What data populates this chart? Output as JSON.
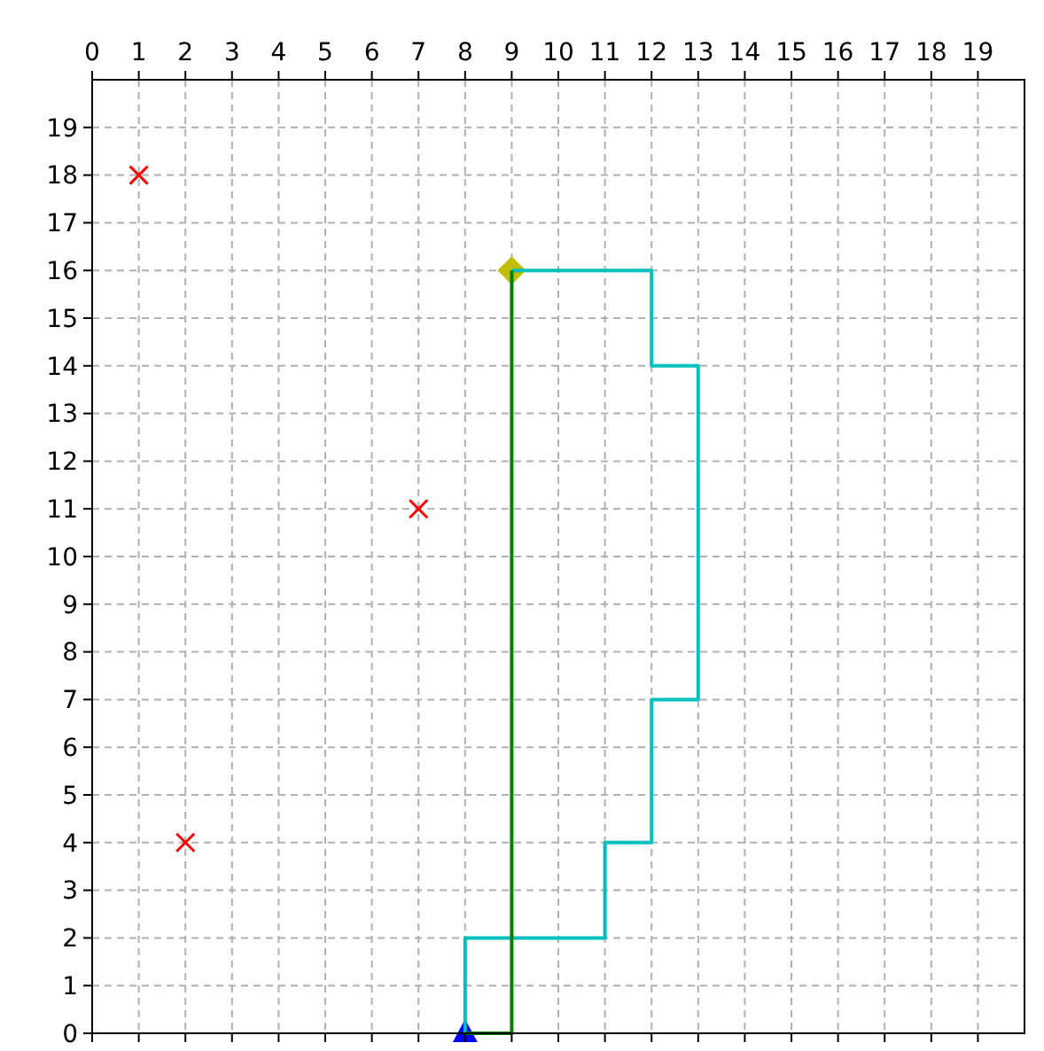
{
  "chart_data": {
    "type": "line",
    "xlim": [
      0,
      20
    ],
    "ylim": [
      0,
      20
    ],
    "xticks": [
      0,
      1,
      2,
      3,
      4,
      5,
      6,
      7,
      8,
      9,
      10,
      11,
      12,
      13,
      14,
      15,
      16,
      17,
      18,
      19
    ],
    "yticks": [
      0,
      1,
      2,
      3,
      4,
      5,
      6,
      7,
      8,
      9,
      10,
      11,
      12,
      13,
      14,
      15,
      16,
      17,
      18,
      19
    ],
    "grid": true,
    "series": [
      {
        "type": "scatter",
        "marker": "triangle",
        "color": "#0000ff",
        "x": [
          8
        ],
        "values": [
          0
        ]
      },
      {
        "type": "scatter",
        "marker": "diamond",
        "color": "#bfbf00",
        "x": [
          9
        ],
        "values": [
          16
        ]
      },
      {
        "type": "scatter",
        "marker": "cross",
        "color": "#ff0000",
        "x": [
          1,
          7,
          2
        ],
        "values": [
          18,
          11,
          4
        ]
      },
      {
        "color": "#00bfbf",
        "x": [
          8,
          8,
          11,
          11,
          12,
          12,
          13,
          13,
          12,
          12,
          9
        ],
        "values": [
          0,
          2,
          2,
          4,
          4,
          7,
          7,
          14,
          14,
          16,
          16
        ]
      },
      {
        "color": "#008000",
        "x": [
          8,
          9,
          9
        ],
        "values": [
          0,
          0,
          16
        ]
      }
    ]
  }
}
